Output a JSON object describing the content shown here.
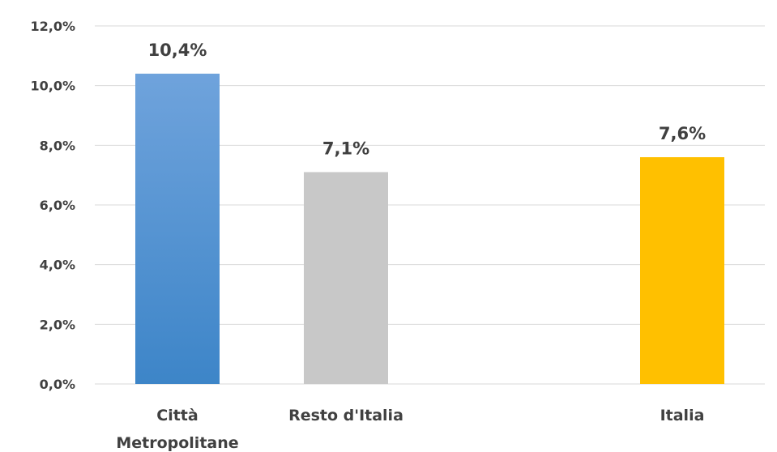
{
  "chart_data": {
    "type": "bar",
    "title": "",
    "xlabel": "",
    "ylabel": "",
    "ylim": [
      0,
      12
    ],
    "yticks": [
      0,
      2,
      4,
      6,
      8,
      10,
      12
    ],
    "ytick_labels": [
      "0,0%",
      "2,0%",
      "4,0%",
      "6,0%",
      "8,0%",
      "10,0%",
      "12,0%"
    ],
    "grid": true,
    "legend": "none",
    "categories": [
      [
        "Città",
        "Metropolitane"
      ],
      [
        "Resto d'Italia"
      ],
      [
        "Italia"
      ]
    ],
    "values": [
      10.4,
      7.1,
      7.6
    ],
    "data_labels": [
      "10,4%",
      "7,1%",
      "7,6%"
    ],
    "bar_colors": [
      {
        "top": "#6fa3dc",
        "bottom": "#3d85c8"
      },
      {
        "top": "#c8c8c8",
        "bottom": "#c8c8c8"
      },
      {
        "top": "#ffc000",
        "bottom": "#ffc000"
      }
    ]
  }
}
